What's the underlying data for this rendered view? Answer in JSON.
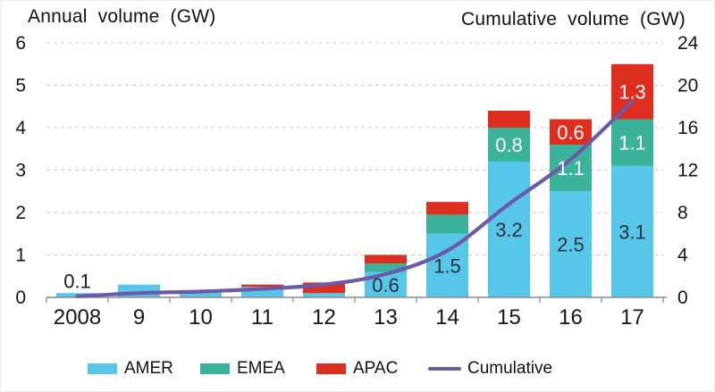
{
  "chart_data": {
    "type": "bar",
    "variant": "stacked-columns-with-cumulative-line",
    "categories": [
      "2008",
      "9",
      "10",
      "11",
      "12",
      "13",
      "14",
      "15",
      "16",
      "17"
    ],
    "series": [
      {
        "name": "AMER",
        "color": "#57C7E9",
        "values": [
          0.1,
          0.3,
          0.15,
          0.25,
          0.1,
          0.6,
          1.5,
          3.2,
          2.5,
          3.1
        ],
        "labels": [
          "",
          "",
          "",
          "",
          "",
          "0.6",
          "1.5",
          "3.2",
          "2.5",
          "3.1"
        ],
        "label_color": "#2a3038"
      },
      {
        "name": "EMEA",
        "color": "#3BB39A",
        "values": [
          0,
          0,
          0,
          0,
          0,
          0.2,
          0.45,
          0.8,
          1.1,
          1.1
        ],
        "labels": [
          "",
          "",
          "",
          "",
          "",
          "",
          "",
          "0.8",
          "1.1",
          "1.1"
        ],
        "label_color": "#ffffff"
      },
      {
        "name": "APAC",
        "color": "#DD2E1F",
        "values": [
          0,
          0,
          0,
          0.05,
          0.25,
          0.2,
          0.3,
          0.4,
          0.6,
          1.3
        ],
        "labels": [
          "",
          "",
          "",
          "",
          "",
          "",
          "",
          "",
          "0.6",
          "1.3"
        ],
        "label_color": "#ffffff"
      }
    ],
    "outside_labels": [
      {
        "category_index": 0,
        "text": "0.1",
        "color": "#1a1a1a"
      }
    ],
    "line_series": {
      "name": "Cumulative",
      "color": "#6C59A8",
      "axis": "right",
      "values": [
        0.1,
        0.4,
        0.55,
        0.8,
        1.2,
        2.2,
        4.4,
        8.8,
        13.0,
        18.5
      ]
    },
    "left_axis": {
      "title": "Annual volume (GW)",
      "min": 0,
      "max": 6,
      "step": 1,
      "tick_labels": [
        "0",
        "1",
        "2",
        "3",
        "4",
        "5",
        "6"
      ]
    },
    "right_axis": {
      "title": "Cumulative volume (GW)",
      "min": 0,
      "max": 24,
      "step": 4,
      "tick_labels": [
        "0",
        "4",
        "8",
        "12",
        "16",
        "20",
        "24"
      ]
    },
    "grid": {
      "horizontal": "dashed",
      "color": "#c9c9c9"
    },
    "axis_color": "#8a8a8a",
    "tick_text_color": "#161616",
    "legend_position": "bottom"
  }
}
